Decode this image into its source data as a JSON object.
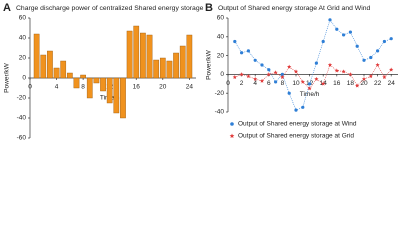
{
  "chart_data": [
    {
      "type": "bar",
      "label": "A",
      "title": "Charge discharge power of centralized Shared energy storage",
      "ylabel": "Power/kW",
      "xlabel": "Time/h",
      "x": [
        1,
        2,
        3,
        4,
        5,
        6,
        7,
        8,
        9,
        10,
        11,
        12,
        13,
        14,
        15,
        16,
        17,
        18,
        19,
        20,
        21,
        22,
        23,
        24
      ],
      "values": [
        44,
        23,
        27,
        10,
        17,
        5,
        -10,
        3,
        -20,
        -5,
        -13,
        -25,
        -35,
        -40,
        47,
        52,
        45,
        43,
        18,
        20,
        17,
        25,
        32,
        43
      ],
      "color": "#f0921e",
      "xlim": [
        0,
        25
      ],
      "xticks": [
        0,
        4,
        8,
        12,
        16,
        20,
        24
      ],
      "ylim": [
        -60,
        60
      ],
      "yticks": [
        -60,
        -40,
        -20,
        0,
        20,
        40,
        60
      ]
    },
    {
      "type": "line",
      "label": "B",
      "title": "Output of Shared energy storage At Grid and Wind",
      "ylabel": "Power/kW",
      "xlabel": "Time/h",
      "x": [
        1,
        2,
        3,
        4,
        5,
        6,
        7,
        8,
        9,
        10,
        11,
        12,
        13,
        14,
        15,
        16,
        17,
        18,
        19,
        20,
        21,
        22,
        23,
        24
      ],
      "series": [
        {
          "name": "Output  of  Shared energy storage at Wind",
          "color": "#2f7fd6",
          "marker": "circle",
          "values": [
            35,
            23,
            25,
            15,
            10,
            5,
            -8,
            0,
            -20,
            -38,
            -35,
            -10,
            12,
            35,
            58,
            48,
            42,
            45,
            30,
            15,
            18,
            25,
            35,
            38
          ]
        },
        {
          "name": "Output  of  Shared energy storage at Grid",
          "color": "#e03a3a",
          "marker": "star",
          "values": [
            -3,
            0,
            -2,
            -5,
            -7,
            0,
            2,
            -3,
            8,
            3,
            -8,
            -15,
            -5,
            -10,
            10,
            4,
            3,
            0,
            -12,
            -5,
            -2,
            10,
            -3,
            5
          ]
        }
      ],
      "xlim": [
        0,
        25
      ],
      "xticks": [
        0,
        2,
        4,
        6,
        8,
        10,
        12,
        14,
        16,
        18,
        20,
        22,
        24
      ],
      "ylim": [
        -40,
        60
      ],
      "yticks": [
        -40,
        -20,
        0,
        20,
        40,
        60
      ]
    }
  ]
}
